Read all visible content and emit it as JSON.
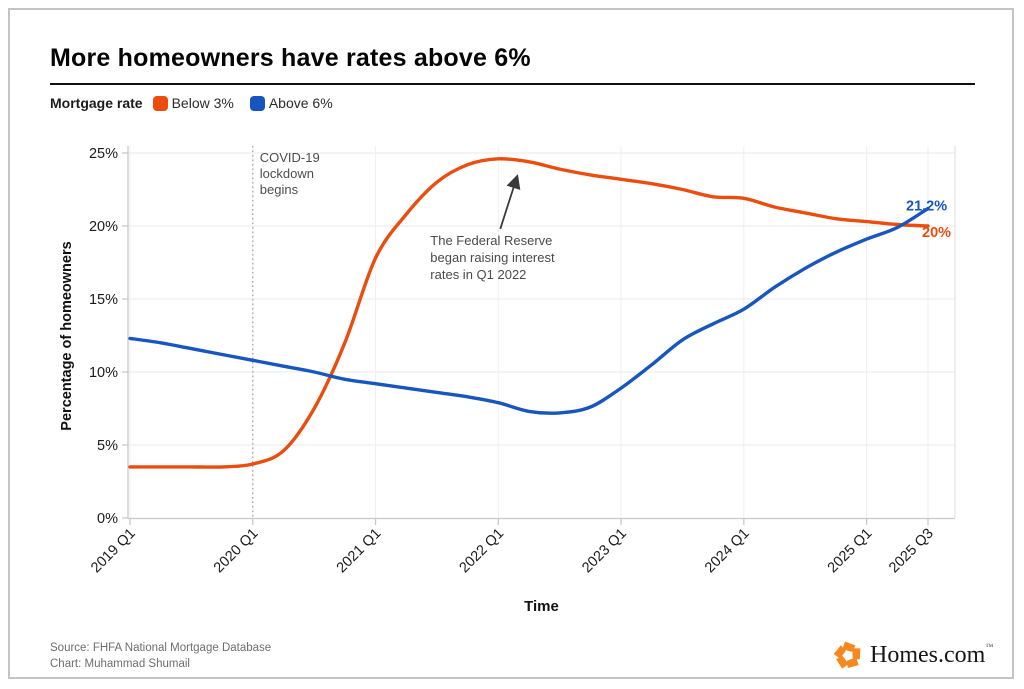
{
  "header": {
    "title": "More homeowners have rates above 6%"
  },
  "legend": {
    "title": "Mortgage rate",
    "items": [
      {
        "label": "Below 3%",
        "color": "#EB4D0E"
      },
      {
        "label": "Above 6%",
        "color": "#1656BE"
      }
    ]
  },
  "chart_data": {
    "type": "line",
    "title": "More homeowners have rates above 6%",
    "xlabel": "Time",
    "ylabel": "Percentage of homeowners",
    "ylim": [
      0,
      25
    ],
    "y_ticks": [
      "0%",
      "5%",
      "10%",
      "15%",
      "20%",
      "25%"
    ],
    "y_tick_values": [
      0,
      5,
      10,
      15,
      20,
      25
    ],
    "x_tick_labels": [
      "2019 Q1",
      "2020 Q1",
      "2021 Q1",
      "2022 Q1",
      "2023 Q1",
      "2024 Q1",
      "2025 Q1",
      "2025 Q3"
    ],
    "x_tick_indices": [
      0,
      4,
      8,
      12,
      16,
      20,
      24,
      26
    ],
    "grid": true,
    "legend_position": "top-left",
    "categories": [
      "2019 Q1",
      "2019 Q2",
      "2019 Q3",
      "2019 Q4",
      "2020 Q1",
      "2020 Q2",
      "2020 Q3",
      "2020 Q4",
      "2021 Q1",
      "2021 Q2",
      "2021 Q3",
      "2021 Q4",
      "2022 Q1",
      "2022 Q2",
      "2022 Q3",
      "2022 Q4",
      "2023 Q1",
      "2023 Q2",
      "2023 Q3",
      "2023 Q4",
      "2024 Q1",
      "2024 Q2",
      "2024 Q3",
      "2024 Q4",
      "2025 Q1",
      "2025 Q2",
      "2025 Q3"
    ],
    "series": [
      {
        "name": "Below 3%",
        "color": "#EB4D0E",
        "end_label": "20%",
        "values": [
          3.5,
          3.5,
          3.5,
          3.5,
          3.7,
          4.6,
          7.5,
          12.0,
          17.8,
          20.8,
          23.0,
          24.2,
          24.6,
          24.4,
          23.9,
          23.5,
          23.2,
          22.9,
          22.5,
          22.0,
          21.9,
          21.3,
          20.9,
          20.5,
          20.3,
          20.1,
          20.0
        ]
      },
      {
        "name": "Above 6%",
        "color": "#1656BE",
        "end_label": "21.2%",
        "values": [
          12.3,
          12.0,
          11.6,
          11.2,
          10.8,
          10.4,
          10.0,
          9.5,
          9.2,
          8.9,
          8.6,
          8.3,
          7.9,
          7.3,
          7.2,
          7.6,
          8.9,
          10.5,
          12.2,
          13.3,
          14.3,
          15.8,
          17.1,
          18.2,
          19.1,
          19.9,
          21.2
        ]
      }
    ],
    "annotations": {
      "covid": {
        "lines": [
          "COVID-19",
          "lockdown",
          "begins"
        ],
        "x_index": 4,
        "line_style": "dotted",
        "color": "#ababab",
        "text_color": "#4d4d4d"
      },
      "fed": {
        "lines": [
          "The Federal Reserve",
          "began raising interest",
          "rates in Q1 2022"
        ],
        "arrow_to_index": 12,
        "arrow_color": "#3a3a3a",
        "text_color": "#4a4a4a"
      }
    },
    "colors": {
      "grid": "#e8e8e8",
      "axis": "#c9c9c9",
      "tick_text": "#1a1a1a"
    }
  },
  "footer": {
    "source": "Source: FHFA National Mortgage Database",
    "credit": "Chart: Muhammad Shumail",
    "brand": "Homes.com",
    "brand_tm": "™",
    "brand_color": "#F6881F"
  }
}
